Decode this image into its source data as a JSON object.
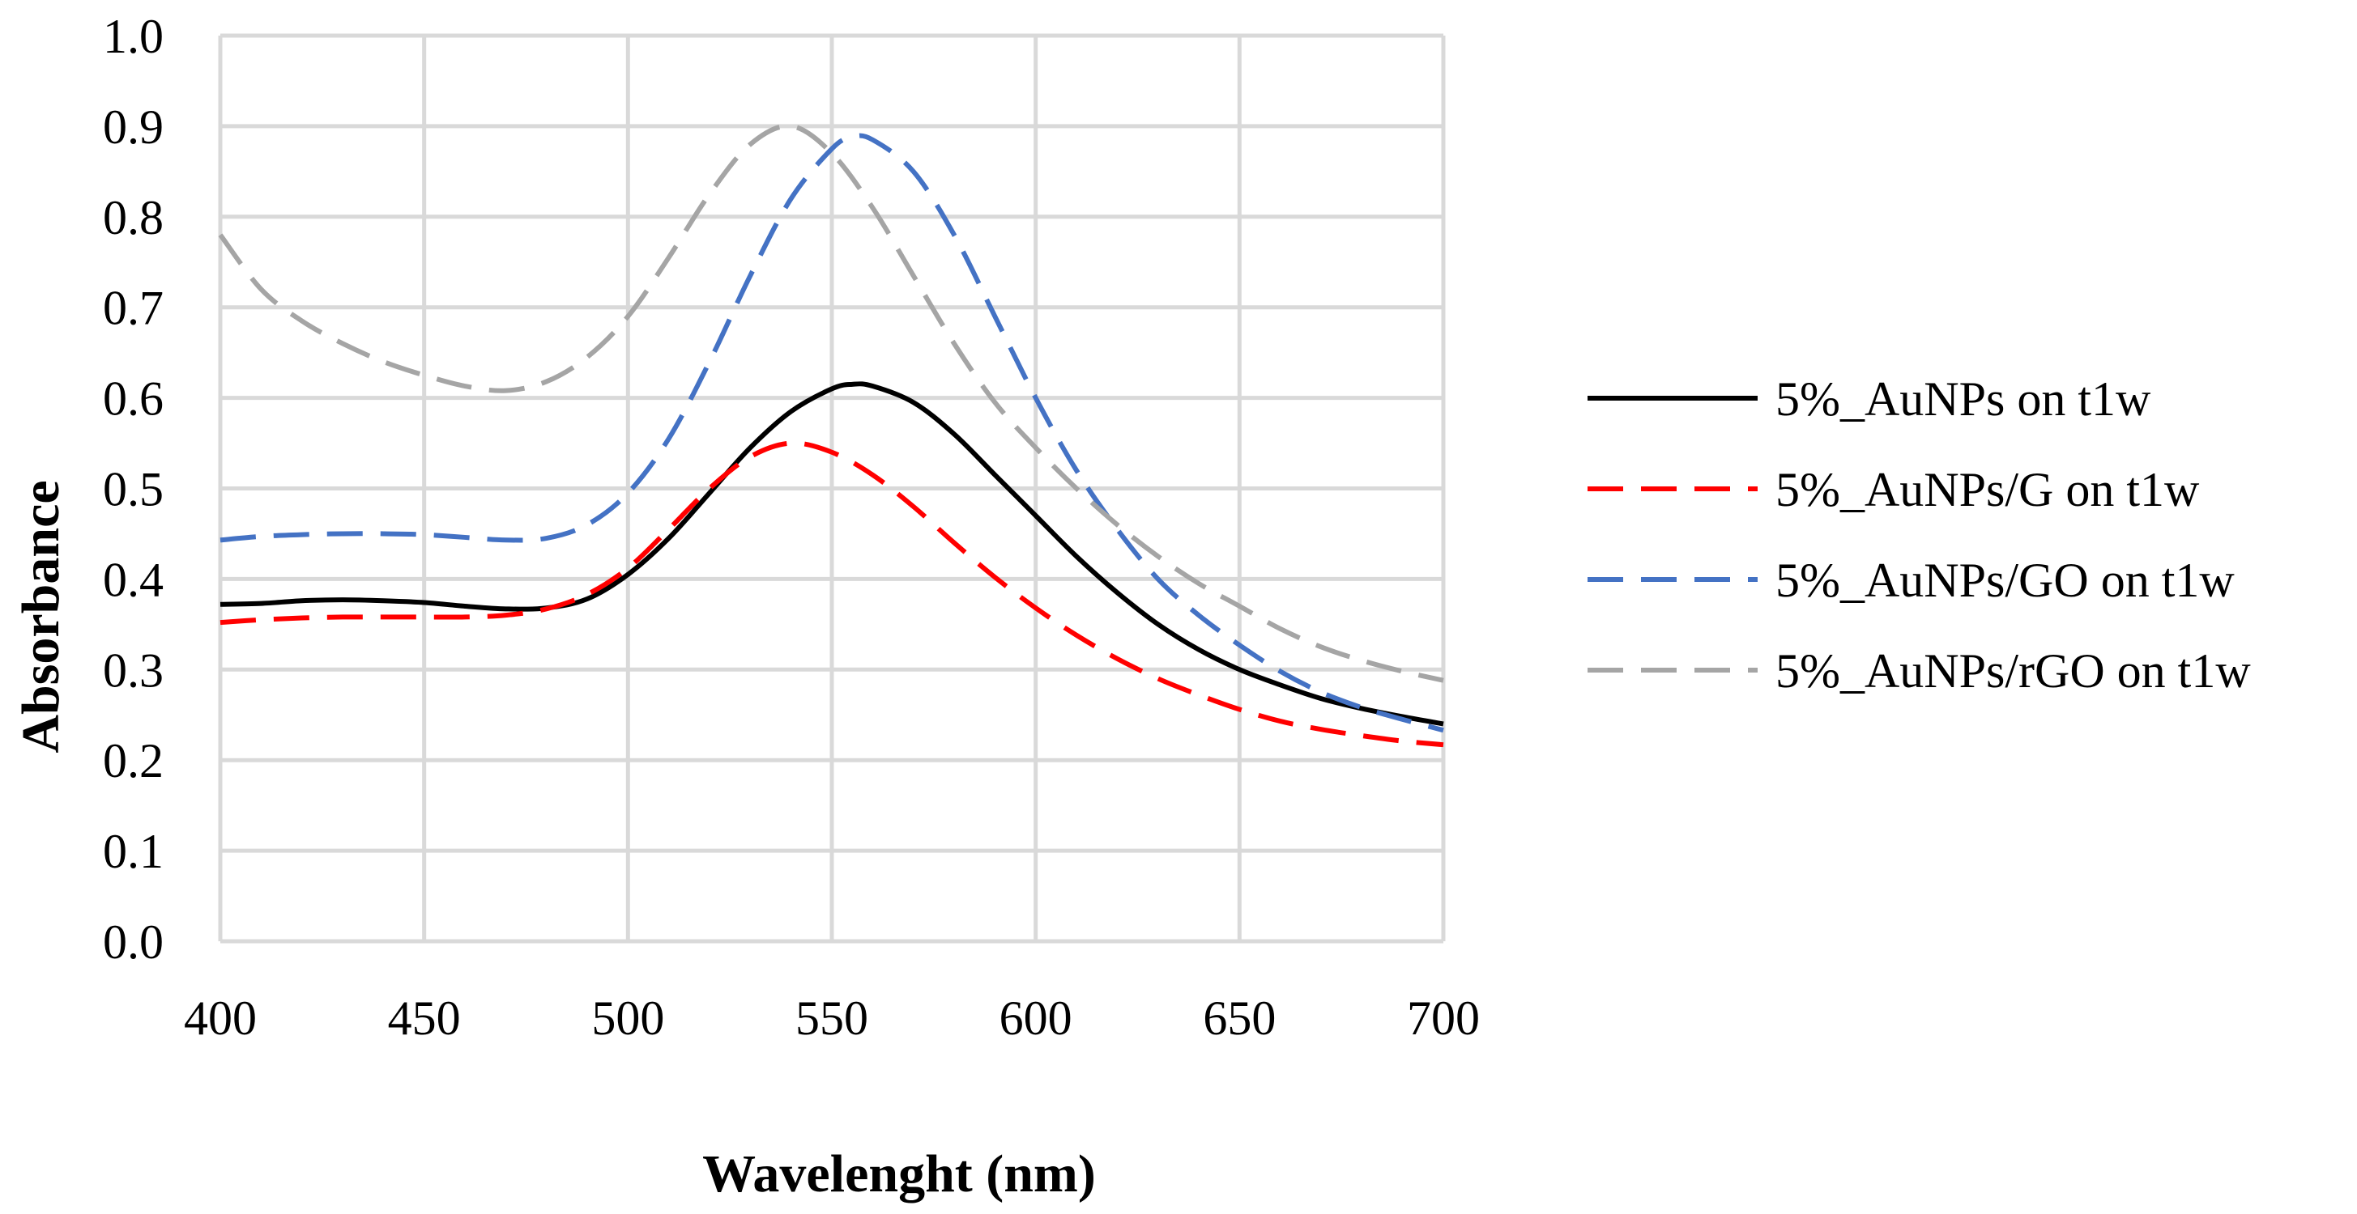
{
  "chart_data": {
    "type": "line",
    "title": "",
    "xlabel": "Wavelenght (nm)",
    "ylabel": "Absorbance",
    "xlim": [
      400,
      700
    ],
    "ylim": [
      0.0,
      1.0
    ],
    "xticks": [
      400,
      450,
      500,
      550,
      600,
      650,
      700
    ],
    "xtick_labels": [
      "400",
      "450",
      "500",
      "550",
      "600",
      "650",
      "700"
    ],
    "yticks": [
      0.0,
      0.1,
      0.2,
      0.3,
      0.4,
      0.5,
      0.6,
      0.7,
      0.8,
      0.9,
      1.0
    ],
    "ytick_labels": [
      "0.0",
      "0.1",
      "0.2",
      "0.3",
      "0.4",
      "0.5",
      "0.6",
      "0.7",
      "0.8",
      "0.9",
      "1.0"
    ],
    "grid": true,
    "legend_position": "right",
    "series": [
      {
        "name": "5%_AuNPs on t1w",
        "color": "#000000",
        "style": "solid",
        "x": [
          400,
          410,
          420,
          430,
          440,
          450,
          460,
          470,
          480,
          490,
          500,
          510,
          520,
          530,
          540,
          550,
          555,
          560,
          570,
          580,
          590,
          600,
          610,
          620,
          630,
          640,
          650,
          660,
          670,
          680,
          690,
          700
        ],
        "y": [
          0.372,
          0.373,
          0.376,
          0.377,
          0.376,
          0.374,
          0.37,
          0.367,
          0.368,
          0.378,
          0.405,
          0.445,
          0.495,
          0.545,
          0.585,
          0.61,
          0.615,
          0.613,
          0.595,
          0.56,
          0.515,
          0.47,
          0.425,
          0.385,
          0.35,
          0.322,
          0.3,
          0.283,
          0.268,
          0.257,
          0.248,
          0.24
        ]
      },
      {
        "name": "5%_AuNPs/G on t1w",
        "color": "#ff0000",
        "style": "dashed",
        "x": [
          400,
          410,
          420,
          430,
          440,
          450,
          460,
          470,
          480,
          490,
          500,
          510,
          520,
          530,
          540,
          550,
          560,
          570,
          580,
          590,
          600,
          610,
          620,
          630,
          640,
          650,
          660,
          670,
          680,
          690,
          700
        ],
        "y": [
          0.352,
          0.355,
          0.357,
          0.358,
          0.358,
          0.358,
          0.358,
          0.36,
          0.367,
          0.383,
          0.412,
          0.455,
          0.5,
          0.535,
          0.55,
          0.54,
          0.515,
          0.48,
          0.44,
          0.402,
          0.368,
          0.338,
          0.312,
          0.29,
          0.272,
          0.256,
          0.243,
          0.234,
          0.227,
          0.221,
          0.217
        ]
      },
      {
        "name": "5%_AuNPs/GO on t1w",
        "color": "#4472c4",
        "style": "dashed",
        "x": [
          400,
          410,
          420,
          430,
          440,
          450,
          460,
          470,
          480,
          490,
          500,
          510,
          520,
          530,
          540,
          550,
          555,
          560,
          570,
          580,
          590,
          600,
          610,
          620,
          630,
          640,
          650,
          660,
          670,
          680,
          690,
          700
        ],
        "y": [
          0.443,
          0.447,
          0.449,
          0.45,
          0.45,
          0.449,
          0.446,
          0.443,
          0.445,
          0.46,
          0.495,
          0.555,
          0.64,
          0.735,
          0.82,
          0.875,
          0.888,
          0.885,
          0.85,
          0.78,
          0.69,
          0.6,
          0.52,
          0.455,
          0.4,
          0.36,
          0.327,
          0.298,
          0.275,
          0.258,
          0.245,
          0.233
        ]
      },
      {
        "name": "5%_AuNPs/rGO on t1w",
        "color": "#a5a5a5",
        "style": "dashed",
        "x": [
          400,
          410,
          420,
          430,
          440,
          450,
          460,
          470,
          480,
          490,
          500,
          510,
          520,
          530,
          540,
          550,
          560,
          570,
          580,
          590,
          600,
          610,
          620,
          630,
          640,
          650,
          660,
          670,
          680,
          690,
          700
        ],
        "y": [
          0.78,
          0.72,
          0.685,
          0.66,
          0.64,
          0.625,
          0.613,
          0.608,
          0.618,
          0.645,
          0.69,
          0.755,
          0.825,
          0.88,
          0.9,
          0.87,
          0.81,
          0.735,
          0.66,
          0.595,
          0.545,
          0.5,
          0.46,
          0.425,
          0.395,
          0.37,
          0.345,
          0.325,
          0.31,
          0.298,
          0.288
        ]
      }
    ]
  }
}
